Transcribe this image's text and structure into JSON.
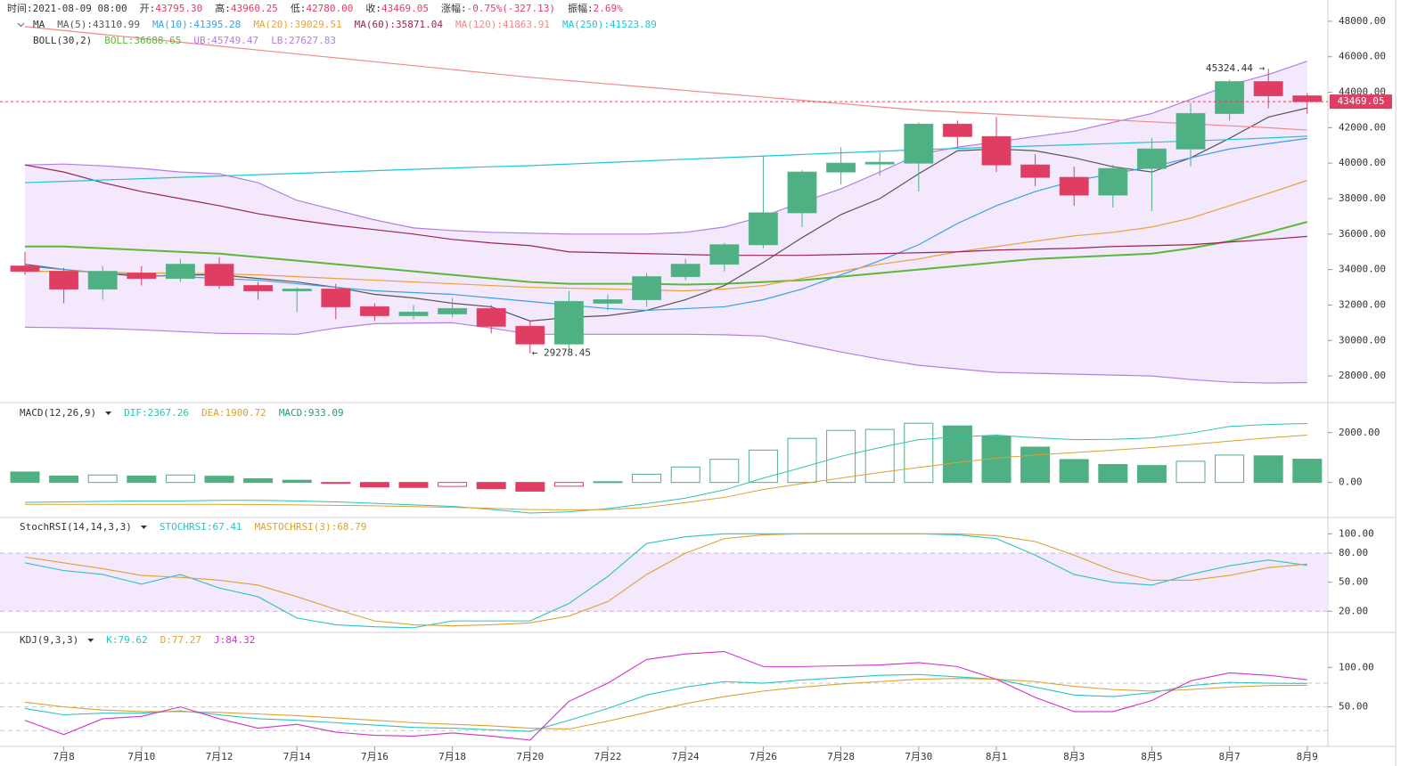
{
  "header": [
    {
      "label": "时间:",
      "value": "2021-08-09 08:00",
      "color": "#333333"
    },
    {
      "label": "开:",
      "value": "43795.30",
      "color": "#e03d63"
    },
    {
      "label": "高:",
      "value": "43960.25",
      "color": "#e03d63"
    },
    {
      "label": "低:",
      "value": "42780.00",
      "color": "#e03d63"
    },
    {
      "label": "收:",
      "value": "43469.05",
      "color": "#e03d63"
    },
    {
      "label": "涨幅:",
      "value": "-0.75%(-327.13)",
      "color": "#e03d63"
    },
    {
      "label": "振幅:",
      "value": "2.69%",
      "color": "#e03d63"
    }
  ],
  "chart_data": [
    {
      "type": "candlestick",
      "ma_label": "MA",
      "boll_label": "BOLL(30,2)",
      "open": [
        34200,
        33900,
        32900,
        33800,
        33500,
        34300,
        33100,
        32800,
        32900,
        31900,
        31400,
        31500,
        31800,
        30800,
        29800,
        32100,
        32300,
        33600,
        34300,
        35400,
        37200,
        39500,
        39950,
        40000,
        42200,
        41500,
        39900,
        39200,
        38200,
        39700,
        40800,
        42800,
        44600,
        43795.3
      ],
      "high": [
        35000,
        34100,
        34200,
        34200,
        34600,
        34700,
        33300,
        33000,
        33200,
        32100,
        32000,
        32400,
        32000,
        31100,
        32800,
        32600,
        33800,
        34600,
        35500,
        40400,
        39600,
        40900,
        40600,
        42300,
        42400,
        42600,
        40500,
        39800,
        39900,
        41400,
        43400,
        44700,
        45324.44,
        43960.25
      ],
      "low": [
        33700,
        32100,
        32300,
        33100,
        33300,
        32900,
        32300,
        31600,
        31200,
        31100,
        31200,
        31300,
        30400,
        29278.45,
        29500,
        31700,
        31900,
        33400,
        33900,
        35200,
        36400,
        38800,
        39300,
        38400,
        40900,
        39500,
        38700,
        37600,
        37500,
        37300,
        39800,
        42400,
        43100,
        42780
      ],
      "close": [
        33900,
        32900,
        33900,
        33500,
        34300,
        33100,
        32800,
        32900,
        31900,
        31400,
        31600,
        31800,
        30800,
        29800,
        32200,
        32300,
        33600,
        34300,
        35400,
        37200,
        39500,
        40000,
        40050,
        42200,
        41500,
        39900,
        39200,
        38200,
        39700,
        40800,
        42800,
        44600,
        43800,
        43469.05
      ],
      "up_color": "#4eb083",
      "down_color": "#e03d63",
      "ma_series": [
        {
          "name": "MA(5):43110.99",
          "color": "#555555",
          "values": [
            34300,
            34000,
            33800,
            33600,
            33700,
            33700,
            33500,
            33300,
            33000,
            32600,
            32400,
            32100,
            31900,
            31100,
            31300,
            31400,
            31700,
            32300,
            33100,
            34400,
            35800,
            37100,
            38000,
            39400,
            40700,
            40800,
            40700,
            40300,
            39800,
            39500,
            40300,
            41400,
            42600,
            43110.99
          ]
        },
        {
          "name": "MA(10):41395.28",
          "color": "#3aa0e8",
          "values": [
            34200,
            34000,
            33800,
            33700,
            33600,
            33500,
            33400,
            33200,
            33000,
            32800,
            32700,
            32600,
            32400,
            32200,
            32000,
            31800,
            31700,
            31800,
            31900,
            32300,
            32900,
            33700,
            34500,
            35400,
            36600,
            37600,
            38400,
            39000,
            39400,
            39800,
            40300,
            40800,
            41100,
            41395.28
          ]
        },
        {
          "name": "MA(20):39029.51",
          "color": "#e8a23a",
          "values": [
            33900,
            33900,
            33850,
            33800,
            33800,
            33750,
            33700,
            33600,
            33500,
            33400,
            33300,
            33200,
            33100,
            33000,
            32950,
            32900,
            32850,
            32800,
            32900,
            33100,
            33500,
            33900,
            34300,
            34600,
            35000,
            35300,
            35600,
            35900,
            36100,
            36400,
            36900,
            37600,
            38300,
            39029.51
          ]
        },
        {
          "name": "MA(60):35871.04",
          "color": "#9c2457",
          "values": [
            39900,
            39500,
            38900,
            38400,
            38000,
            37600,
            37150,
            36800,
            36500,
            36250,
            36000,
            35700,
            35500,
            35350,
            35000,
            34950,
            34900,
            34850,
            34800,
            34800,
            34800,
            34850,
            34900,
            34950,
            35000,
            35100,
            35150,
            35200,
            35300,
            35350,
            35400,
            35550,
            35700,
            35871.04
          ]
        },
        {
          "name": "MA(120):41863.91",
          "color": "#f08a8a",
          "values": [
            47700,
            47480,
            47260,
            47040,
            46820,
            46600,
            46380,
            46160,
            45940,
            45720,
            45500,
            45280,
            45060,
            44840,
            44655,
            44470,
            44285,
            44100,
            43915,
            43730,
            43545,
            43360,
            43175,
            42990,
            42880,
            42770,
            42660,
            42550,
            42440,
            42330,
            42220,
            42110,
            42000,
            41863.91
          ]
        },
        {
          "name": "MA(250):41523.89",
          "color": "#1fc6d6",
          "values": [
            38900,
            38975,
            39050,
            39125,
            39200,
            39275,
            39350,
            39425,
            39500,
            39575,
            39650,
            39725,
            39800,
            39860,
            39950,
            40040,
            40130,
            40220,
            40310,
            40400,
            40490,
            40580,
            40670,
            40760,
            40830,
            40900,
            40970,
            41040,
            41110,
            41180,
            41250,
            41330,
            41420,
            41523.89
          ]
        }
      ],
      "boll_series": [
        {
          "name": "BOLL:36688.65",
          "color": "#5cb83a",
          "band": "mid",
          "values": [
            35300,
            35300,
            35200,
            35100,
            35000,
            34900,
            34700,
            34500,
            34300,
            34100,
            33900,
            33700,
            33500,
            33300,
            33200,
            33200,
            33200,
            33150,
            33200,
            33300,
            33400,
            33600,
            33800,
            34000,
            34200,
            34400,
            34600,
            34700,
            34800,
            34900,
            35200,
            35600,
            36100,
            36688.65
          ]
        },
        {
          "name": "UB:45749.47",
          "color": "#b07ee8",
          "band": "upper",
          "values": [
            39900,
            39950,
            39850,
            39700,
            39500,
            39400,
            38900,
            37900,
            37350,
            36800,
            36350,
            36200,
            36100,
            36050,
            36000,
            36000,
            36000,
            36100,
            36400,
            37000,
            37800,
            38550,
            39500,
            40500,
            40900,
            41200,
            41500,
            41800,
            42300,
            42800,
            43600,
            44400,
            45000,
            45749.47
          ]
        },
        {
          "name": "LB:27627.83",
          "color": "#b07ee8",
          "band": "lower",
          "values": [
            30750,
            30720,
            30680,
            30600,
            30500,
            30400,
            30380,
            30350,
            30700,
            30950,
            30980,
            31000,
            30700,
            30350,
            30350,
            30350,
            30350,
            30350,
            30320,
            30250,
            29800,
            29350,
            28950,
            28600,
            28400,
            28200,
            28150,
            28100,
            28050,
            28000,
            27800,
            27650,
            27600,
            27627.83
          ]
        }
      ],
      "band_fill": "#f4e8fc",
      "ylim": [
        27000,
        49000
      ],
      "yticks": [
        {
          "value": 28000,
          "label": "28000.00"
        },
        {
          "value": 30000,
          "label": "30000.00"
        },
        {
          "value": 32000,
          "label": "32000.00"
        },
        {
          "value": 34000,
          "label": "34000.00"
        },
        {
          "value": 36000,
          "label": "36000.00"
        },
        {
          "value": 38000,
          "label": "38000.00"
        },
        {
          "value": 40000,
          "label": "40000.00"
        },
        {
          "value": 42000,
          "label": "42000.00"
        },
        {
          "value": 44000,
          "label": "44000.00"
        },
        {
          "value": 46000,
          "label": "46000.00"
        },
        {
          "value": 48000,
          "label": "48000.00"
        }
      ],
      "last_price": 43469.05,
      "last_price_color": "#e03d63",
      "max_label": "45324.44 →",
      "min_label": "← 29278.45"
    },
    {
      "type": "macd",
      "label": "MACD(12,26,9)",
      "series": [
        {
          "name": "DIF:2367.26",
          "color": "#2cc3b0",
          "values": [
            -800,
            -780,
            -760,
            -740,
            -740,
            -720,
            -720,
            -740,
            -780,
            -840,
            -900,
            -960,
            -1080,
            -1230,
            -1180,
            -1050,
            -850,
            -630,
            -300,
            175,
            600,
            1050,
            1400,
            1720,
            1830,
            1900,
            1800,
            1720,
            1730,
            1790,
            1980,
            2250,
            2330,
            2367.26
          ]
        },
        {
          "name": "DEA:1900.72",
          "color": "#d9a233",
          "values": [
            -880,
            -880,
            -880,
            -880,
            -880,
            -880,
            -890,
            -900,
            -920,
            -940,
            -970,
            -1000,
            -1040,
            -1090,
            -1100,
            -1090,
            -1000,
            -810,
            -600,
            -280,
            -50,
            175,
            400,
            600,
            800,
            980,
            1100,
            1200,
            1300,
            1400,
            1520,
            1660,
            1790,
            1900.72
          ]
        }
      ],
      "histogram": {
        "name": "MACD:933.09",
        "color": "#2e9e6e",
        "values": [
          420,
          260,
          300,
          260,
          300,
          250,
          150,
          90,
          -30,
          -180,
          -200,
          -160,
          -250,
          -350,
          -150,
          30,
          330,
          620,
          930,
          1300,
          1770,
          2090,
          2130,
          2380,
          2270,
          1860,
          1420,
          920,
          720,
          680,
          850,
          1100,
          1070,
          933.09
        ]
      },
      "up_color": "#4eb083",
      "down_color": "#e03d63",
      "ylim": [
        -1300,
        3100
      ],
      "yticks": [
        {
          "value": 0,
          "label": "0.00"
        },
        {
          "value": 2000,
          "label": "2000.00"
        }
      ]
    },
    {
      "type": "line",
      "label": "StochRSI(14,14,3,3)",
      "series": [
        {
          "name": "STOCHRSI:67.41",
          "color": "#2cc3c0",
          "values": [
            70,
            62,
            58,
            48,
            58,
            44,
            35,
            13,
            6,
            4,
            3,
            10,
            10,
            10,
            28,
            56,
            90,
            97,
            100,
            100,
            100,
            100,
            100,
            100,
            99,
            95,
            78,
            58,
            50,
            47,
            58,
            67,
            73,
            67.41
          ]
        },
        {
          "name": "MASTOCHRSI(3):68.79",
          "color": "#d9a233",
          "values": [
            76,
            70,
            64,
            57,
            55,
            52,
            47,
            35,
            22,
            10,
            6,
            5,
            6,
            8,
            15,
            30,
            58,
            80,
            95,
            99,
            100,
            100,
            100,
            100,
            100,
            98,
            92,
            78,
            62,
            52,
            52,
            57,
            65,
            68.79
          ]
        }
      ],
      "shaded_band": [
        20,
        80
      ],
      "band_fill": "#f4e8fc",
      "ylim": [
        0,
        115
      ],
      "yticks": [
        {
          "value": 20,
          "label": "20.00"
        },
        {
          "value": 50,
          "label": "50.00"
        },
        {
          "value": 80,
          "label": "80.00"
        },
        {
          "value": 100,
          "label": "100.00"
        }
      ]
    },
    {
      "type": "line",
      "label": "KDJ(9,3,3)",
      "categories": [
        null,
        "7月8",
        null,
        "7月10",
        null,
        "7月12",
        null,
        "7月14",
        null,
        "7月16",
        null,
        "7月18",
        null,
        "7月20",
        null,
        "7月22",
        null,
        "7月24",
        null,
        "7月26",
        null,
        "7月28",
        null,
        "7月30",
        null,
        "8月1",
        null,
        "8月3",
        null,
        "8月5",
        null,
        "8月7",
        null,
        "8月9"
      ],
      "series": [
        {
          "name": "K:79.62",
          "color": "#2cc3c0",
          "values": [
            48,
            40,
            42,
            42,
            45,
            40,
            35,
            33,
            30,
            27,
            24,
            23,
            21,
            19,
            33,
            48,
            65,
            75,
            82,
            80,
            84,
            87,
            90,
            91,
            88,
            85,
            75,
            65,
            63,
            68,
            77,
            81,
            80,
            79.62
          ]
        },
        {
          "name": "D:77.27",
          "color": "#d9a233",
          "values": [
            56,
            50,
            46,
            44,
            44,
            43,
            41,
            39,
            36,
            33,
            30,
            28,
            26,
            23,
            22,
            32,
            43,
            54,
            63,
            70,
            75,
            79,
            82,
            85,
            86,
            85,
            82,
            76,
            72,
            70,
            72,
            75,
            77,
            77.27
          ]
        },
        {
          "name": "J:84.32",
          "color": "#d033c8",
          "values": [
            33,
            15,
            35,
            38,
            50,
            35,
            23,
            28,
            18,
            14,
            13,
            17,
            13,
            8,
            57,
            80,
            110,
            117,
            120,
            101,
            101,
            102,
            103,
            106,
            101,
            85,
            62,
            44,
            44,
            58,
            83,
            93,
            90,
            84.32
          ]
        }
      ],
      "reference_lines": [
        20,
        50,
        80
      ],
      "ylim": [
        0,
        142
      ],
      "yticks": [
        {
          "value": 50,
          "label": "50.00"
        },
        {
          "value": 100,
          "label": "100.00"
        }
      ]
    }
  ]
}
